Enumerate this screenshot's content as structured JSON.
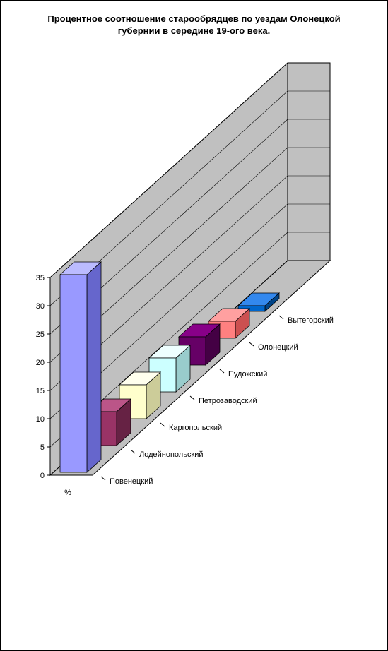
{
  "title_line1": "Процентное соотношение старообрядцев по уездам Олонецкой",
  "title_line2": "губернии в середине 19-ого века.",
  "chart": {
    "type": "bar3d",
    "x_axis_label": "%",
    "ylim": [
      0,
      35
    ],
    "ytick_step": 5,
    "yticks": [
      "0",
      "5",
      "10",
      "15",
      "20",
      "25",
      "30",
      "35"
    ],
    "categories": [
      "Повенецкий",
      "Лодейнопольский",
      "Каргопольский",
      "Петрозаводский",
      "Пудожский",
      "Олонецкий",
      "Вытегорский"
    ],
    "values": [
      35,
      6,
      6,
      6,
      5,
      3,
      1
    ],
    "bar_colors": {
      "front": [
        "#9999ff",
        "#993366",
        "#ffffcc",
        "#ccffff",
        "#660066",
        "#ff8080",
        "#0066cc"
      ],
      "side": [
        "#6666cc",
        "#662244",
        "#cccc99",
        "#99cccc",
        "#440044",
        "#cc5050",
        "#004488"
      ],
      "top": [
        "#bbbbff",
        "#bb5588",
        "#ffffee",
        "#eeffff",
        "#880088",
        "#ffa0a0",
        "#3388ee"
      ]
    },
    "background_color": "#ffffff",
    "wall_color": "#c0c0c0",
    "wall_grid_color": "#000000",
    "floor_color": "#c0c0c0",
    "title_fontsize": 13,
    "label_fontsize": 11
  }
}
